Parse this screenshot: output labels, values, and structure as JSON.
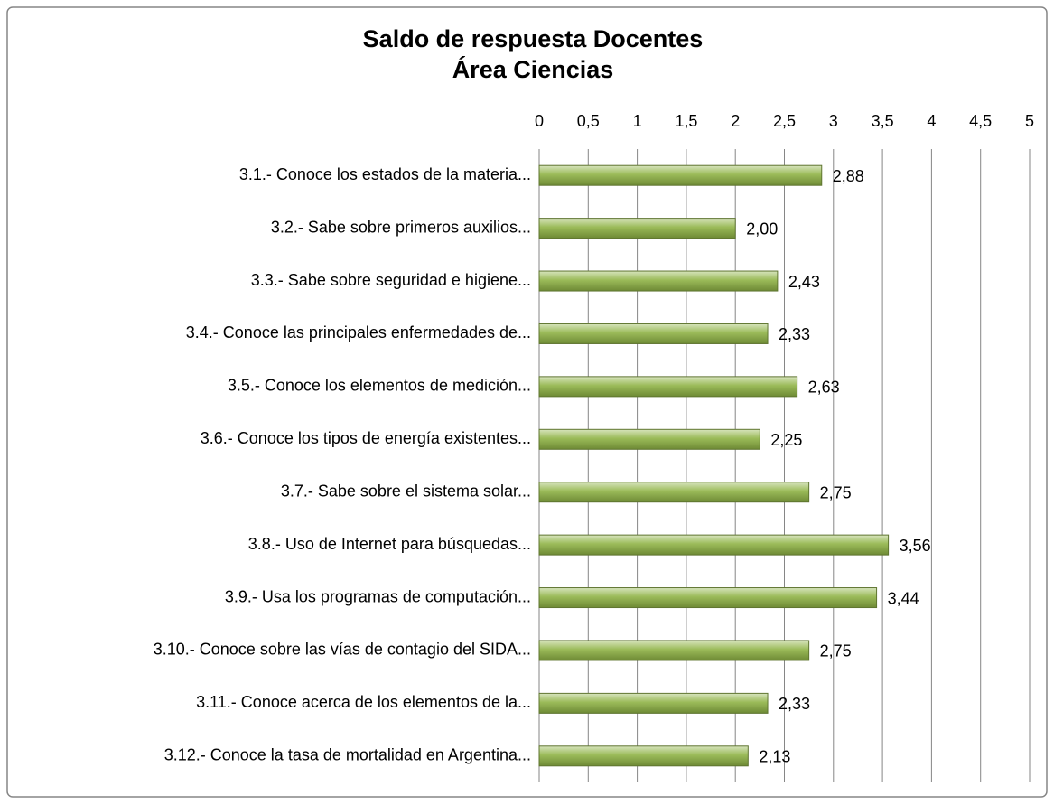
{
  "chart_data": {
    "type": "bar",
    "orientation": "horizontal",
    "title": [
      "Saldo de respuesta Docentes",
      "Área Ciencias"
    ],
    "categories": [
      "3.1.- Conoce los estados de la materia...",
      "3.2.- Sabe sobre primeros auxilios...",
      "3.3.- Sabe sobre seguridad e higiene...",
      "3.4.- Conoce las principales enfermedades de...",
      "3.5.- Conoce los elementos de medición...",
      "3.6.- Conoce los tipos de energía existentes...",
      "3.7.- Sabe sobre el sistema solar...",
      "3.8.- Uso de Internet para búsquedas...",
      "3.9.- Usa los programas de computación...",
      "3.10.- Conoce sobre las vías de contagio del SIDA...",
      "3.11.- Conoce acerca de los elementos de la...",
      "3.12.- Conoce la tasa de mortalidad en Argentina..."
    ],
    "values": [
      2.88,
      2.0,
      2.43,
      2.33,
      2.63,
      2.25,
      2.75,
      3.56,
      3.44,
      2.75,
      2.33,
      2.13
    ],
    "value_labels": [
      "2,88",
      "2,00",
      "2,43",
      "2,33",
      "2,63",
      "2,25",
      "2,75",
      "3,56",
      "3,44",
      "2,75",
      "2,33",
      "2,13"
    ],
    "color": "#9bbb59",
    "xlim": [
      0,
      5
    ],
    "xticks": [
      0,
      {
        "value": 0.5,
        "label": "0,5"
      },
      1,
      {
        "value": 1.5,
        "label": "1,5"
      },
      2,
      {
        "value": 2.5,
        "label": "2,5"
      },
      3,
      {
        "value": 3.5,
        "label": "3,5"
      },
      4,
      {
        "value": 4.5,
        "label": "4,5"
      },
      5
    ],
    "grid": true
  }
}
